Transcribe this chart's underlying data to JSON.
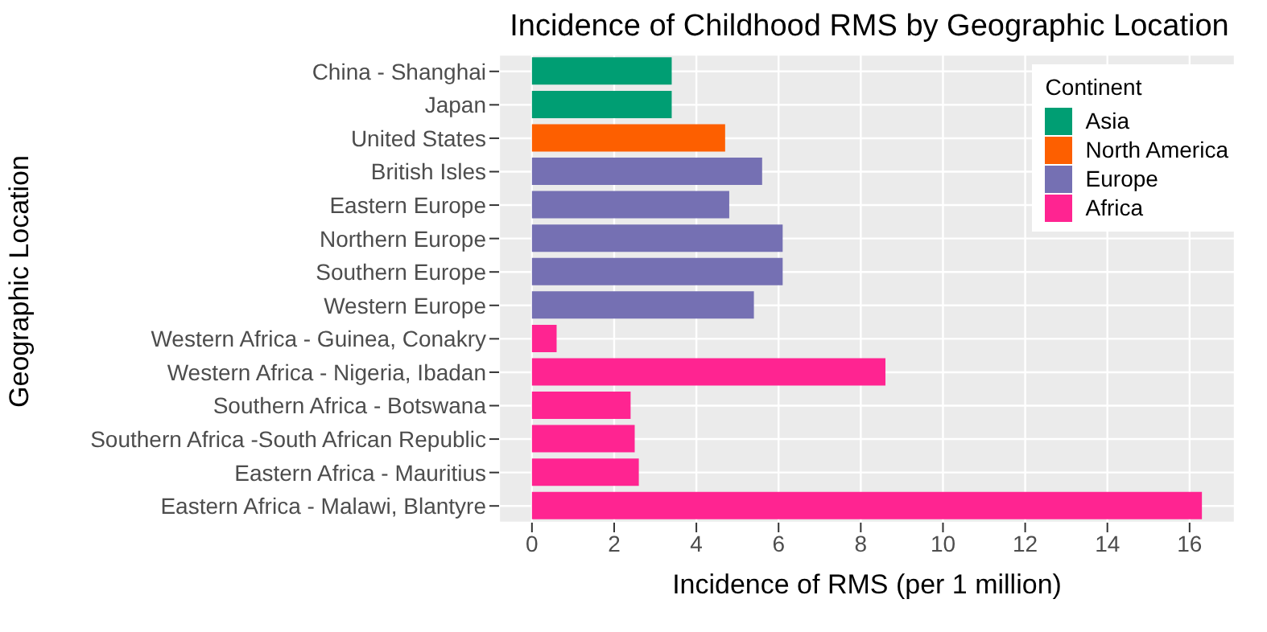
{
  "chart_data": {
    "type": "bar",
    "orientation": "horizontal",
    "title": "Incidence of Childhood RMS by Geographic Location",
    "xlabel": "Incidence of RMS (per 1 million)",
    "ylabel": "Geographic Location",
    "legend_title": "Continent",
    "legend": "top right",
    "grid": true,
    "categories": [
      "China - Shanghai",
      "Japan",
      "United States",
      "British Isles",
      "Eastern Europe",
      "Northern Europe",
      "Southern Europe",
      "Western Europe",
      "Western Africa - Guinea, Conakry",
      "Western Africa - Nigeria, Ibadan",
      "Southern Africa - Botswana",
      "Southern Africa -South African Republic",
      "Eastern Africa - Mauritius",
      "Eastern Africa - Malawi, Blantyre"
    ],
    "series": [
      {
        "name": "Asia",
        "color": "#009e73",
        "values": [
          3.4,
          3.4,
          null,
          null,
          null,
          null,
          null,
          null,
          null,
          null,
          null,
          null,
          null,
          null
        ]
      },
      {
        "name": "North America",
        "color": "#fd5f00",
        "values": [
          null,
          null,
          4.7,
          null,
          null,
          null,
          null,
          null,
          null,
          null,
          null,
          null,
          null,
          null
        ]
      },
      {
        "name": "Europe",
        "color": "#7570b3",
        "values": [
          null,
          null,
          null,
          5.6,
          4.8,
          6.1,
          6.1,
          5.4,
          null,
          null,
          null,
          null,
          null,
          null
        ]
      },
      {
        "name": "Africa",
        "color": "#ff2491",
        "values": [
          null,
          null,
          null,
          null,
          null,
          null,
          null,
          null,
          0.6,
          8.6,
          2.4,
          2.5,
          2.6,
          16.3
        ]
      }
    ],
    "xlim": [
      -0.8,
      17.1
    ],
    "xticks": [
      0,
      2,
      4,
      6,
      8,
      10,
      12,
      14,
      16
    ]
  }
}
